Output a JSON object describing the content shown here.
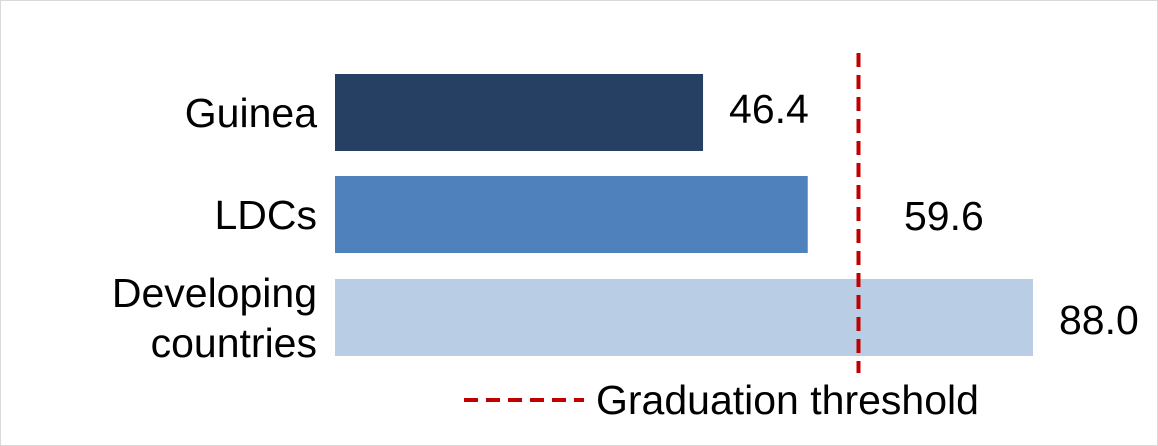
{
  "chart_data": {
    "type": "bar",
    "orientation": "horizontal",
    "title": "",
    "xlabel": "",
    "ylabel": "",
    "categories": [
      [
        "Guinea"
      ],
      [
        "LDCs"
      ],
      [
        "Developing",
        "countries"
      ]
    ],
    "values": [
      46.4,
      59.6,
      88.0
    ],
    "value_labels": [
      "46.4",
      "59.6",
      "88.0"
    ],
    "bar_colors": [
      "#264064",
      "#4f81bd",
      "#b9cde5"
    ],
    "xlim": [
      0,
      88.0
    ],
    "grid": false,
    "reference_line": {
      "label": "Graduation threshold",
      "value": 66,
      "color": "#c00000",
      "style": "dashed"
    },
    "legend": {
      "position": "bottom",
      "entries": [
        "Graduation threshold"
      ]
    }
  }
}
